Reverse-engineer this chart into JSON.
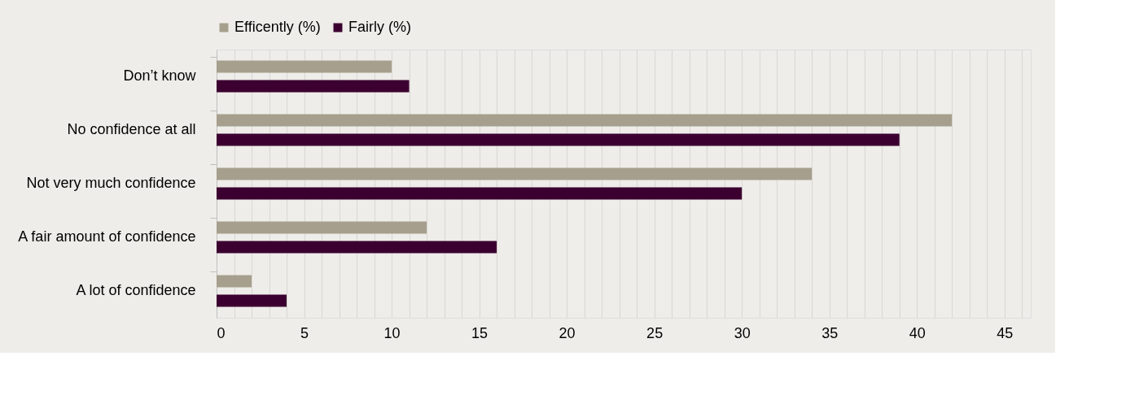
{
  "chart_data": {
    "type": "bar",
    "orientation": "horizontal",
    "categories": [
      "Don’t know",
      "No confidence at all",
      "Not very much confidence",
      "A fair amount of confidence",
      "A lot of confidence"
    ],
    "series": [
      {
        "name": "Efficently (%)",
        "color": "#a69f8d",
        "values": [
          10,
          42,
          34,
          12,
          2
        ]
      },
      {
        "name": "Fairly (%)",
        "color": "#3b0030",
        "values": [
          11,
          39,
          30,
          16,
          4
        ]
      }
    ],
    "xlim": [
      0,
      46.5
    ],
    "xticks": [
      0,
      {
        "value": 1,
        "label": null
      },
      {
        "value": 2,
        "label": null
      },
      {
        "value": 3,
        "label": null
      },
      {
        "value": 4,
        "label": null
      },
      5,
      {
        "value": 6,
        "label": null
      },
      {
        "value": 7,
        "label": null
      },
      {
        "value": 8,
        "label": null
      },
      {
        "value": 9,
        "label": null
      },
      10,
      {
        "value": 11,
        "label": null
      },
      {
        "value": 12,
        "label": null
      },
      {
        "value": 13,
        "label": null
      },
      {
        "value": 14,
        "label": null
      },
      15,
      {
        "value": 16,
        "label": null
      },
      {
        "value": 17,
        "label": null
      },
      {
        "value": 18,
        "label": null
      },
      {
        "value": 19,
        "label": null
      },
      20,
      {
        "value": 21,
        "label": null
      },
      {
        "value": 22,
        "label": null
      },
      {
        "value": 23,
        "label": null
      },
      {
        "value": 24,
        "label": null
      },
      25,
      {
        "value": 26,
        "label": null
      },
      {
        "value": 27,
        "label": null
      },
      {
        "value": 28,
        "label": null
      },
      {
        "value": 29,
        "label": null
      },
      30,
      {
        "value": 31,
        "label": null
      },
      {
        "value": 32,
        "label": null
      },
      {
        "value": 33,
        "label": null
      },
      {
        "value": 34,
        "label": null
      },
      35,
      {
        "value": 36,
        "label": null
      },
      {
        "value": 37,
        "label": null
      },
      {
        "value": 38,
        "label": null
      },
      {
        "value": 39,
        "label": null
      },
      40,
      {
        "value": 41,
        "label": null
      },
      {
        "value": 42,
        "label": null
      },
      {
        "value": 43,
        "label": null
      },
      {
        "value": 44,
        "label": null
      },
      45,
      {
        "value": 46,
        "label": null
      }
    ],
    "grid": "x",
    "legend": "top"
  }
}
